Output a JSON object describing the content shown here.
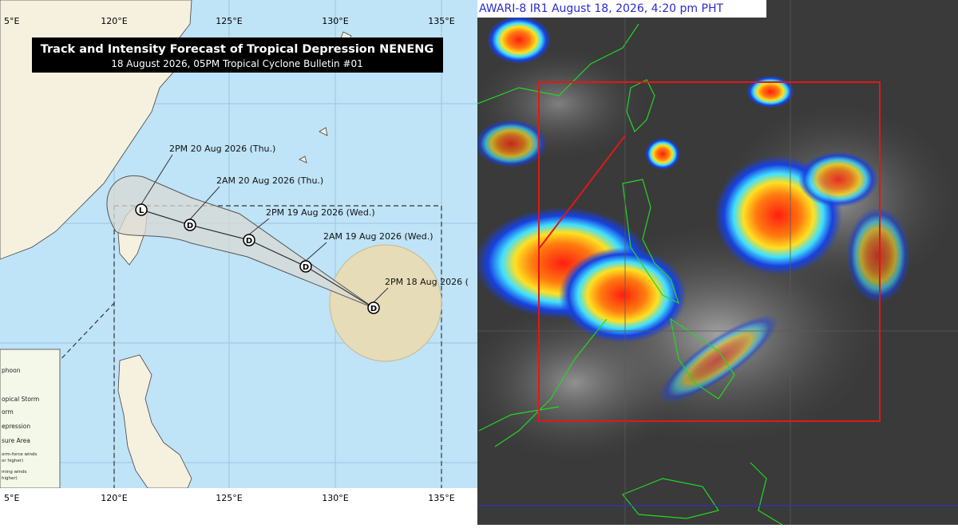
{
  "forecast_map": {
    "title": "Track and Intensity Forecast of Tropical Depression NENENG",
    "subtitle": "18 August 2026, 05PM Tropical Cyclone Bulletin #01",
    "longitude_labels_top": [
      "5°E",
      "120°E",
      "125°E",
      "130°E",
      "135°E"
    ],
    "longitude_labels_bottom": [
      "5°E",
      "120°E",
      "125°E",
      "130°E",
      "135°E"
    ],
    "track_points": [
      {
        "label": "2PM 18 Aug 2026 (",
        "marker": "D"
      },
      {
        "label": "2AM 19 Aug 2026 (Wed.)",
        "marker": "D"
      },
      {
        "label": "2PM 19 Aug 2026 (Wed.)",
        "marker": "D"
      },
      {
        "label": "2AM 20 Aug 2026 (Thu.)",
        "marker": "D"
      },
      {
        "label": "2PM 20 Aug 2026 (Thu.)",
        "marker": "L"
      }
    ],
    "legend": [
      "phoon",
      "opical Storm",
      "orm",
      "epression",
      "sure Area",
      "orm-force winds",
      "or higher)",
      "ming winds",
      "higher)"
    ]
  },
  "satellite": {
    "caption": "AWARI-8 IR1 August 18, 2026, 4:20 pm PHT"
  }
}
